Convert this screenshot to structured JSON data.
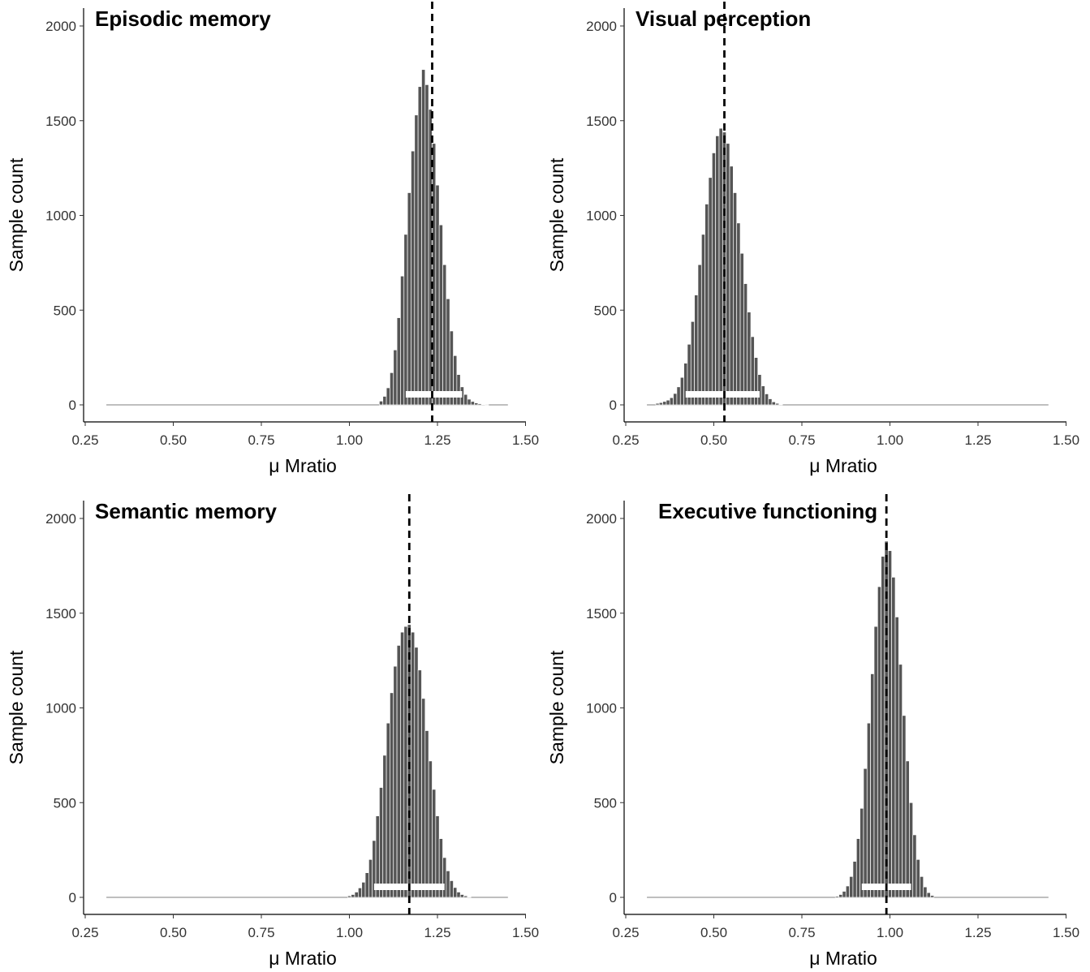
{
  "chart_data": [
    {
      "type": "bar",
      "title": "Episodic memory",
      "xlabel": "μ Mratio",
      "ylabel": "Sample count",
      "xlim": [
        0.25,
        1.5
      ],
      "ylim": [
        0,
        2000
      ],
      "xticks": [
        "0.25",
        "0.50",
        "0.75",
        "1.00",
        "1.25",
        "1.50"
      ],
      "yticks": [
        "0",
        "500",
        "1000",
        "1500",
        "2000"
      ],
      "mean": 1.235,
      "hdi": [
        1.16,
        1.32
      ],
      "bins": {
        "x": [
          1.09,
          1.1,
          1.11,
          1.12,
          1.13,
          1.14,
          1.15,
          1.16,
          1.17,
          1.18,
          1.19,
          1.2,
          1.21,
          1.22,
          1.23,
          1.24,
          1.25,
          1.26,
          1.27,
          1.28,
          1.29,
          1.3,
          1.31,
          1.32,
          1.33,
          1.34,
          1.35,
          1.36,
          1.37,
          1.38,
          1.39
        ],
        "counts": [
          20,
          45,
          90,
          170,
          290,
          460,
          680,
          900,
          1120,
          1340,
          1530,
          1680,
          1770,
          1690,
          1560,
          1380,
          1160,
          950,
          740,
          560,
          390,
          260,
          160,
          95,
          55,
          30,
          18,
          10,
          6,
          3,
          1
        ]
      },
      "baseline_range": [
        0.31,
        1.45
      ],
      "grid": false
    },
    {
      "type": "bar",
      "title": "Visual perception",
      "xlabel": "μ Mratio",
      "ylabel": "Sample count",
      "xlim": [
        0.25,
        1.5
      ],
      "ylim": [
        0,
        2000
      ],
      "xticks": [
        "0.25",
        "0.50",
        "0.75",
        "1.00",
        "1.25",
        "1.50"
      ],
      "yticks": [
        "0",
        "500",
        "1000",
        "1500",
        "2000"
      ],
      "mean": 0.53,
      "hdi": [
        0.42,
        0.63
      ],
      "bins": {
        "x": [
          0.34,
          0.35,
          0.36,
          0.37,
          0.38,
          0.39,
          0.4,
          0.41,
          0.42,
          0.43,
          0.44,
          0.45,
          0.46,
          0.47,
          0.48,
          0.49,
          0.5,
          0.51,
          0.52,
          0.53,
          0.54,
          0.55,
          0.56,
          0.57,
          0.58,
          0.59,
          0.6,
          0.61,
          0.62,
          0.63,
          0.64,
          0.65,
          0.66,
          0.67,
          0.68,
          0.69
        ],
        "counts": [
          8,
          12,
          18,
          25,
          38,
          60,
          95,
          145,
          220,
          320,
          440,
          580,
          740,
          900,
          1060,
          1200,
          1330,
          1420,
          1460,
          1440,
          1380,
          1260,
          1120,
          960,
          800,
          640,
          490,
          360,
          250,
          160,
          100,
          58,
          32,
          16,
          8,
          3
        ]
      },
      "baseline_range": [
        0.31,
        1.45
      ],
      "grid": false
    },
    {
      "type": "bar",
      "title": "Semantic memory",
      "xlabel": "μ Mratio",
      "ylabel": "Sample count",
      "xlim": [
        0.25,
        1.5
      ],
      "ylim": [
        0,
        2000
      ],
      "xticks": [
        "0.25",
        "0.50",
        "0.75",
        "1.00",
        "1.25",
        "1.50"
      ],
      "yticks": [
        "0",
        "500",
        "1000",
        "1500",
        "2000"
      ],
      "mean": 1.17,
      "hdi": [
        1.07,
        1.27
      ],
      "bins": {
        "x": [
          1,
          1.01,
          1.02,
          1.03,
          1.04,
          1.05,
          1.06,
          1.07,
          1.08,
          1.09,
          1.1,
          1.11,
          1.12,
          1.13,
          1.14,
          1.15,
          1.16,
          1.17,
          1.18,
          1.19,
          1.2,
          1.21,
          1.22,
          1.23,
          1.24,
          1.25,
          1.26,
          1.27,
          1.28,
          1.29,
          1.3,
          1.31,
          1.32,
          1.33,
          1.34
        ],
        "counts": [
          8,
          15,
          28,
          50,
          80,
          130,
          200,
          300,
          430,
          580,
          750,
          920,
          1080,
          1220,
          1330,
          1400,
          1430,
          1440,
          1400,
          1320,
          1200,
          1050,
          880,
          720,
          570,
          430,
          310,
          210,
          140,
          88,
          52,
          28,
          15,
          8,
          3
        ]
      },
      "baseline_range": [
        0.31,
        1.45
      ],
      "grid": false
    },
    {
      "type": "bar",
      "title": "Executive functioning",
      "xlabel": "μ Mratio",
      "ylabel": "Sample count",
      "xlim": [
        0.25,
        1.5
      ],
      "ylim": [
        0,
        2000
      ],
      "xticks": [
        "0.25",
        "0.50",
        "0.75",
        "1.00",
        "1.25",
        "1.50"
      ],
      "yticks": [
        "0",
        "500",
        "1000",
        "1500",
        "2000"
      ],
      "mean": 0.99,
      "hdi": [
        0.92,
        1.06
      ],
      "bins": {
        "x": [
          0.85,
          0.86,
          0.87,
          0.88,
          0.89,
          0.9,
          0.91,
          0.92,
          0.93,
          0.94,
          0.95,
          0.96,
          0.97,
          0.98,
          0.99,
          1,
          1.01,
          1.02,
          1.03,
          1.04,
          1.05,
          1.06,
          1.07,
          1.08,
          1.09,
          1.1,
          1.11,
          1.12
        ],
        "counts": [
          6,
          15,
          32,
          60,
          110,
          190,
          310,
          470,
          680,
          920,
          1180,
          1430,
          1640,
          1800,
          1880,
          1830,
          1690,
          1480,
          1230,
          960,
          720,
          500,
          330,
          200,
          110,
          55,
          25,
          10
        ]
      },
      "baseline_range": [
        0.31,
        1.45
      ],
      "grid": false
    }
  ]
}
